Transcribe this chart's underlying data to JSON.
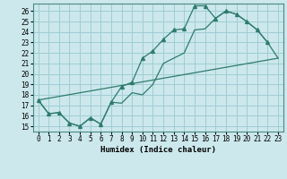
{
  "xlabel": "Humidex (Indice chaleur)",
  "background_color": "#cce8ec",
  "grid_color": "#9fcdd4",
  "line_color": "#2e7b6e",
  "xlim": [
    -0.5,
    23.5
  ],
  "ylim": [
    14.5,
    26.7
  ],
  "xticks": [
    0,
    1,
    2,
    3,
    4,
    5,
    6,
    7,
    8,
    9,
    10,
    11,
    12,
    13,
    14,
    15,
    16,
    17,
    18,
    19,
    20,
    21,
    22,
    23
  ],
  "yticks": [
    15,
    16,
    17,
    18,
    19,
    20,
    21,
    22,
    23,
    24,
    25,
    26
  ],
  "line1_x": [
    0,
    1,
    2,
    3,
    4,
    5,
    6,
    7,
    8,
    9,
    10,
    11,
    12,
    13,
    14,
    15,
    16,
    17,
    18,
    19,
    20,
    21,
    22
  ],
  "line1_y": [
    17.5,
    16.2,
    16.3,
    15.3,
    15.0,
    15.8,
    15.2,
    17.3,
    18.8,
    19.2,
    21.5,
    22.2,
    23.3,
    24.2,
    24.3,
    26.5,
    26.5,
    25.3,
    26.0,
    25.7,
    25.0,
    24.2,
    23.0
  ],
  "line2_x": [
    0,
    1,
    2,
    3,
    4,
    5,
    6,
    7,
    8,
    9,
    10,
    11,
    12,
    13,
    14,
    15,
    16,
    17,
    18,
    19,
    20,
    21,
    22,
    23
  ],
  "line2_y": [
    17.5,
    16.2,
    16.3,
    15.3,
    15.0,
    15.8,
    15.2,
    17.3,
    17.2,
    18.2,
    18.0,
    19.0,
    21.0,
    21.5,
    22.0,
    24.2,
    24.3,
    25.3,
    26.0,
    25.7,
    25.0,
    24.2,
    23.0,
    21.5
  ],
  "line3_x": [
    0,
    23
  ],
  "line3_y": [
    17.5,
    21.5
  ]
}
